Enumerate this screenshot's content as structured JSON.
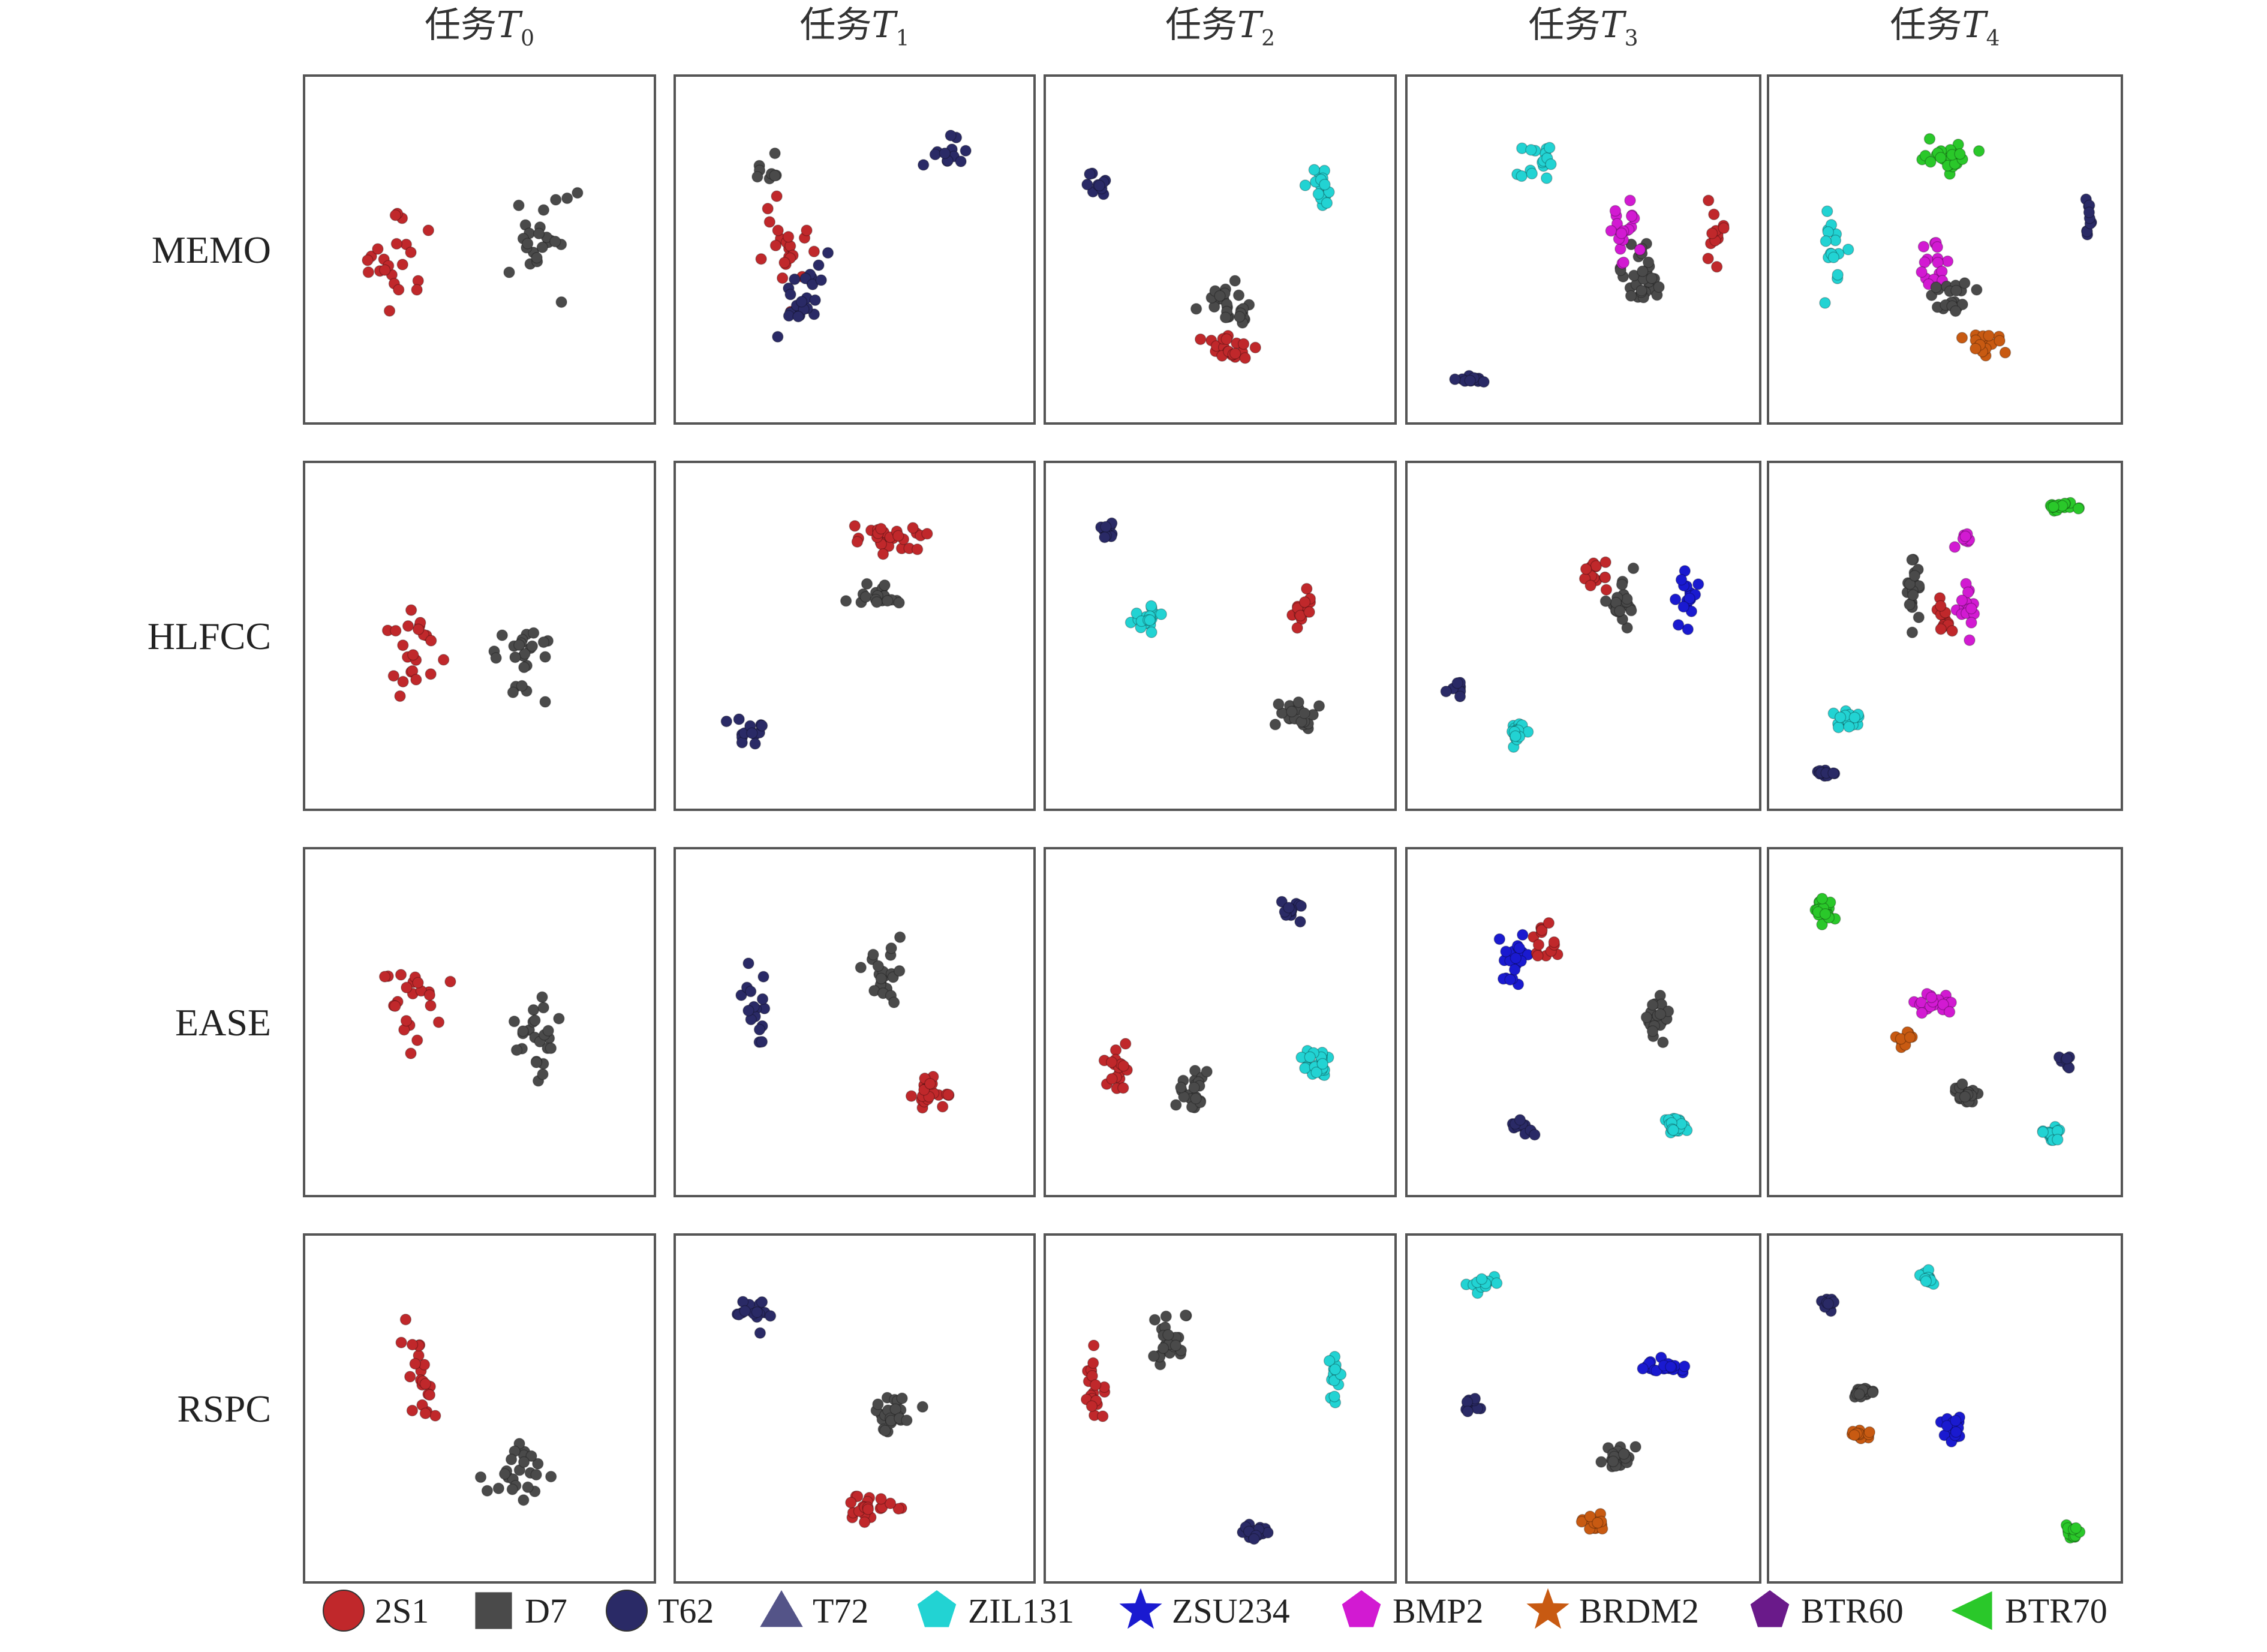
{
  "chart_data": {
    "type": "scatter",
    "columns": [
      "任务T0",
      "任务T1",
      "任务T2",
      "任务T3",
      "任务T4"
    ],
    "column_prefix": "任务",
    "column_symbol": "T",
    "column_subscripts": [
      "0",
      "1",
      "2",
      "3",
      "4"
    ],
    "rows": [
      "MEMO",
      "HLFCC",
      "EASE",
      "RSPC"
    ],
    "legend": {
      "placement": "bottom",
      "entries": [
        {
          "label": "2S1",
          "color": "#c0282b",
          "shape": "circle"
        },
        {
          "label": "D7",
          "color": "#4a4a4a",
          "shape": "square"
        },
        {
          "label": "T62",
          "color": "#2a2a66",
          "shape": "circle"
        },
        {
          "label": "T72",
          "color": "#545488",
          "shape": "triangle"
        },
        {
          "label": "ZIL131",
          "color": "#22d3d3",
          "shape": "pentagon"
        },
        {
          "label": "ZSU234",
          "color": "#1a1ad0",
          "shape": "star"
        },
        {
          "label": "BMP2",
          "color": "#d21ad2",
          "shape": "pentagon"
        },
        {
          "label": "BRDM2",
          "color": "#c85a12",
          "shape": "star"
        },
        {
          "label": "BTR60",
          "color": "#6a1a8a",
          "shape": "pentagon"
        },
        {
          "label": "BTR70",
          "color": "#2ac82a",
          "shape": "triangle-left"
        }
      ]
    },
    "panels": [
      [
        {
          "clusters": [
            {
              "c": 0,
              "x": 0.25,
              "y": 0.55,
              "sx": 0.17,
              "sy": 0.28,
              "n": 22
            },
            {
              "c": 1,
              "x": 0.68,
              "y": 0.45,
              "sx": 0.16,
              "sy": 0.27,
              "n": 24
            }
          ]
        },
        {
          "clusters": [
            {
              "c": 0,
              "x": 0.3,
              "y": 0.5,
              "sx": 0.17,
              "sy": 0.27,
              "n": 22
            },
            {
              "c": 2,
              "x": 0.35,
              "y": 0.62,
              "sx": 0.14,
              "sy": 0.2,
              "n": 24
            },
            {
              "c": 2,
              "x": 0.78,
              "y": 0.2,
              "sx": 0.12,
              "sy": 0.08,
              "n": 12
            },
            {
              "c": 1,
              "x": 0.25,
              "y": 0.25,
              "sx": 0.08,
              "sy": 0.08,
              "n": 8
            }
          ]
        },
        {
          "clusters": [
            {
              "c": 2,
              "x": 0.12,
              "y": 0.3,
              "sx": 0.08,
              "sy": 0.06,
              "n": 10
            },
            {
              "c": 4,
              "x": 0.8,
              "y": 0.32,
              "sx": 0.08,
              "sy": 0.16,
              "n": 15
            },
            {
              "c": 1,
              "x": 0.52,
              "y": 0.67,
              "sx": 0.15,
              "sy": 0.1,
              "n": 28
            },
            {
              "c": 0,
              "x": 0.53,
              "y": 0.8,
              "sx": 0.18,
              "sy": 0.07,
              "n": 22
            }
          ]
        },
        {
          "clusters": [
            {
              "c": 4,
              "x": 0.36,
              "y": 0.22,
              "sx": 0.1,
              "sy": 0.12,
              "n": 16
            },
            {
              "c": 2,
              "x": 0.16,
              "y": 0.9,
              "sx": 0.1,
              "sy": 0.02,
              "n": 12
            },
            {
              "c": 1,
              "x": 0.68,
              "y": 0.58,
              "sx": 0.12,
              "sy": 0.2,
              "n": 30
            },
            {
              "c": 6,
              "x": 0.62,
              "y": 0.45,
              "sx": 0.12,
              "sy": 0.2,
              "n": 20
            },
            {
              "c": 0,
              "x": 0.9,
              "y": 0.45,
              "sx": 0.04,
              "sy": 0.15,
              "n": 14
            }
          ]
        },
        {
          "clusters": [
            {
              "c": 9,
              "x": 0.5,
              "y": 0.22,
              "sx": 0.15,
              "sy": 0.08,
              "n": 26
            },
            {
              "c": 4,
              "x": 0.16,
              "y": 0.5,
              "sx": 0.08,
              "sy": 0.22,
              "n": 16
            },
            {
              "c": 6,
              "x": 0.45,
              "y": 0.55,
              "sx": 0.12,
              "sy": 0.15,
              "n": 16
            },
            {
              "c": 1,
              "x": 0.52,
              "y": 0.65,
              "sx": 0.1,
              "sy": 0.12,
              "n": 20
            },
            {
              "c": 7,
              "x": 0.62,
              "y": 0.8,
              "sx": 0.12,
              "sy": 0.07,
              "n": 16
            },
            {
              "c": 2,
              "x": 0.93,
              "y": 0.4,
              "sx": 0.02,
              "sy": 0.12,
              "n": 10
            }
          ]
        }
      ],
      [
        {
          "clusters": [
            {
              "c": 0,
              "x": 0.3,
              "y": 0.55,
              "sx": 0.15,
              "sy": 0.25,
              "n": 22
            },
            {
              "c": 1,
              "x": 0.65,
              "y": 0.55,
              "sx": 0.16,
              "sy": 0.25,
              "n": 24
            }
          ]
        },
        {
          "clusters": [
            {
              "c": 0,
              "x": 0.6,
              "y": 0.2,
              "sx": 0.2,
              "sy": 0.08,
              "n": 26
            },
            {
              "c": 1,
              "x": 0.58,
              "y": 0.38,
              "sx": 0.14,
              "sy": 0.08,
              "n": 20
            },
            {
              "c": 2,
              "x": 0.18,
              "y": 0.8,
              "sx": 0.08,
              "sy": 0.08,
              "n": 14
            }
          ]
        },
        {
          "clusters": [
            {
              "c": 2,
              "x": 0.15,
              "y": 0.18,
              "sx": 0.06,
              "sy": 0.06,
              "n": 10
            },
            {
              "c": 4,
              "x": 0.28,
              "y": 0.45,
              "sx": 0.08,
              "sy": 0.08,
              "n": 20
            },
            {
              "c": 0,
              "x": 0.75,
              "y": 0.4,
              "sx": 0.06,
              "sy": 0.12,
              "n": 14
            },
            {
              "c": 1,
              "x": 0.72,
              "y": 0.75,
              "sx": 0.12,
              "sy": 0.08,
              "n": 20
            }
          ]
        },
        {
          "clusters": [
            {
              "c": 0,
              "x": 0.55,
              "y": 0.3,
              "sx": 0.08,
              "sy": 0.1,
              "n": 14
            },
            {
              "c": 1,
              "x": 0.62,
              "y": 0.4,
              "sx": 0.08,
              "sy": 0.15,
              "n": 22
            },
            {
              "c": 5,
              "x": 0.82,
              "y": 0.38,
              "sx": 0.07,
              "sy": 0.15,
              "n": 18
            },
            {
              "c": 2,
              "x": 0.12,
              "y": 0.66,
              "sx": 0.05,
              "sy": 0.05,
              "n": 8
            },
            {
              "c": 4,
              "x": 0.3,
              "y": 0.8,
              "sx": 0.06,
              "sy": 0.06,
              "n": 20
            }
          ]
        },
        {
          "clusters": [
            {
              "c": 9,
              "x": 0.85,
              "y": 0.1,
              "sx": 0.08,
              "sy": 0.03,
              "n": 20
            },
            {
              "c": 6,
              "x": 0.56,
              "y": 0.2,
              "sx": 0.05,
              "sy": 0.04,
              "n": 8
            },
            {
              "c": 1,
              "x": 0.4,
              "y": 0.38,
              "sx": 0.04,
              "sy": 0.2,
              "n": 20
            },
            {
              "c": 0,
              "x": 0.5,
              "y": 0.45,
              "sx": 0.05,
              "sy": 0.12,
              "n": 12
            },
            {
              "c": 6,
              "x": 0.56,
              "y": 0.42,
              "sx": 0.05,
              "sy": 0.15,
              "n": 16
            },
            {
              "c": 4,
              "x": 0.2,
              "y": 0.76,
              "sx": 0.08,
              "sy": 0.06,
              "n": 16
            },
            {
              "c": 2,
              "x": 0.14,
              "y": 0.92,
              "sx": 0.06,
              "sy": 0.02,
              "n": 12
            }
          ]
        }
      ],
      [
        {
          "clusters": [
            {
              "c": 0,
              "x": 0.3,
              "y": 0.45,
              "sx": 0.16,
              "sy": 0.27,
              "n": 22
            },
            {
              "c": 1,
              "x": 0.68,
              "y": 0.55,
              "sx": 0.15,
              "sy": 0.25,
              "n": 24
            }
          ]
        },
        {
          "clusters": [
            {
              "c": 2,
              "x": 0.2,
              "y": 0.45,
              "sx": 0.08,
              "sy": 0.25,
              "n": 16
            },
            {
              "c": 1,
              "x": 0.58,
              "y": 0.35,
              "sx": 0.1,
              "sy": 0.2,
              "n": 22
            },
            {
              "c": 0,
              "x": 0.72,
              "y": 0.72,
              "sx": 0.12,
              "sy": 0.12,
              "n": 22
            }
          ]
        },
        {
          "clusters": [
            {
              "c": 2,
              "x": 0.72,
              "y": 0.16,
              "sx": 0.07,
              "sy": 0.06,
              "n": 12
            },
            {
              "c": 0,
              "x": 0.18,
              "y": 0.65,
              "sx": 0.08,
              "sy": 0.12,
              "n": 18
            },
            {
              "c": 1,
              "x": 0.42,
              "y": 0.72,
              "sx": 0.08,
              "sy": 0.12,
              "n": 22
            },
            {
              "c": 4,
              "x": 0.8,
              "y": 0.62,
              "sx": 0.08,
              "sy": 0.1,
              "n": 24
            }
          ]
        },
        {
          "clusters": [
            {
              "c": 5,
              "x": 0.28,
              "y": 0.3,
              "sx": 0.1,
              "sy": 0.18,
              "n": 20
            },
            {
              "c": 0,
              "x": 0.38,
              "y": 0.25,
              "sx": 0.1,
              "sy": 0.1,
              "n": 14
            },
            {
              "c": 1,
              "x": 0.72,
              "y": 0.5,
              "sx": 0.08,
              "sy": 0.1,
              "n": 22
            },
            {
              "c": 2,
              "x": 0.32,
              "y": 0.82,
              "sx": 0.06,
              "sy": 0.06,
              "n": 12
            },
            {
              "c": 4,
              "x": 0.78,
              "y": 0.82,
              "sx": 0.08,
              "sy": 0.06,
              "n": 22
            }
          ]
        },
        {
          "clusters": [
            {
              "c": 9,
              "x": 0.14,
              "y": 0.16,
              "sx": 0.05,
              "sy": 0.08,
              "n": 22
            },
            {
              "c": 6,
              "x": 0.46,
              "y": 0.44,
              "sx": 0.1,
              "sy": 0.05,
              "n": 20
            },
            {
              "c": 7,
              "x": 0.38,
              "y": 0.55,
              "sx": 0.05,
              "sy": 0.05,
              "n": 10
            },
            {
              "c": 1,
              "x": 0.56,
              "y": 0.72,
              "sx": 0.08,
              "sy": 0.05,
              "n": 22
            },
            {
              "c": 2,
              "x": 0.86,
              "y": 0.62,
              "sx": 0.04,
              "sy": 0.04,
              "n": 8
            },
            {
              "c": 4,
              "x": 0.82,
              "y": 0.84,
              "sx": 0.06,
              "sy": 0.05,
              "n": 16
            }
          ]
        }
      ],
      [
        {
          "clusters": [
            {
              "c": 0,
              "x": 0.32,
              "y": 0.4,
              "sx": 0.12,
              "sy": 0.25,
              "n": 22
            },
            {
              "c": 1,
              "x": 0.6,
              "y": 0.68,
              "sx": 0.17,
              "sy": 0.18,
              "n": 24
            }
          ]
        },
        {
          "clusters": [
            {
              "c": 2,
              "x": 0.2,
              "y": 0.2,
              "sx": 0.1,
              "sy": 0.1,
              "n": 16
            },
            {
              "c": 1,
              "x": 0.62,
              "y": 0.52,
              "sx": 0.13,
              "sy": 0.12,
              "n": 26
            },
            {
              "c": 0,
              "x": 0.55,
              "y": 0.8,
              "sx": 0.15,
              "sy": 0.08,
              "n": 22
            }
          ]
        },
        {
          "clusters": [
            {
              "c": 0,
              "x": 0.12,
              "y": 0.45,
              "sx": 0.06,
              "sy": 0.25,
              "n": 20
            },
            {
              "c": 1,
              "x": 0.35,
              "y": 0.3,
              "sx": 0.1,
              "sy": 0.15,
              "n": 24
            },
            {
              "c": 4,
              "x": 0.85,
              "y": 0.4,
              "sx": 0.05,
              "sy": 0.12,
              "n": 16
            },
            {
              "c": 2,
              "x": 0.6,
              "y": 0.88,
              "sx": 0.1,
              "sy": 0.05,
              "n": 16
            }
          ]
        },
        {
          "clusters": [
            {
              "c": 4,
              "x": 0.2,
              "y": 0.12,
              "sx": 0.1,
              "sy": 0.05,
              "n": 16
            },
            {
              "c": 5,
              "x": 0.75,
              "y": 0.37,
              "sx": 0.14,
              "sy": 0.04,
              "n": 22
            },
            {
              "c": 2,
              "x": 0.16,
              "y": 0.5,
              "sx": 0.05,
              "sy": 0.08,
              "n": 10
            },
            {
              "c": 1,
              "x": 0.6,
              "y": 0.65,
              "sx": 0.1,
              "sy": 0.08,
              "n": 22
            },
            {
              "c": 7,
              "x": 0.52,
              "y": 0.85,
              "sx": 0.1,
              "sy": 0.04,
              "n": 16
            }
          ]
        },
        {
          "clusters": [
            {
              "c": 4,
              "x": 0.44,
              "y": 0.1,
              "sx": 0.05,
              "sy": 0.04,
              "n": 14
            },
            {
              "c": 2,
              "x": 0.15,
              "y": 0.18,
              "sx": 0.04,
              "sy": 0.05,
              "n": 10
            },
            {
              "c": 1,
              "x": 0.25,
              "y": 0.45,
              "sx": 0.08,
              "sy": 0.03,
              "n": 20
            },
            {
              "c": 7,
              "x": 0.25,
              "y": 0.58,
              "sx": 0.07,
              "sy": 0.04,
              "n": 14
            },
            {
              "c": 5,
              "x": 0.52,
              "y": 0.55,
              "sx": 0.05,
              "sy": 0.08,
              "n": 20
            },
            {
              "c": 9,
              "x": 0.88,
              "y": 0.88,
              "sx": 0.04,
              "sy": 0.05,
              "n": 20
            }
          ]
        }
      ]
    ]
  }
}
